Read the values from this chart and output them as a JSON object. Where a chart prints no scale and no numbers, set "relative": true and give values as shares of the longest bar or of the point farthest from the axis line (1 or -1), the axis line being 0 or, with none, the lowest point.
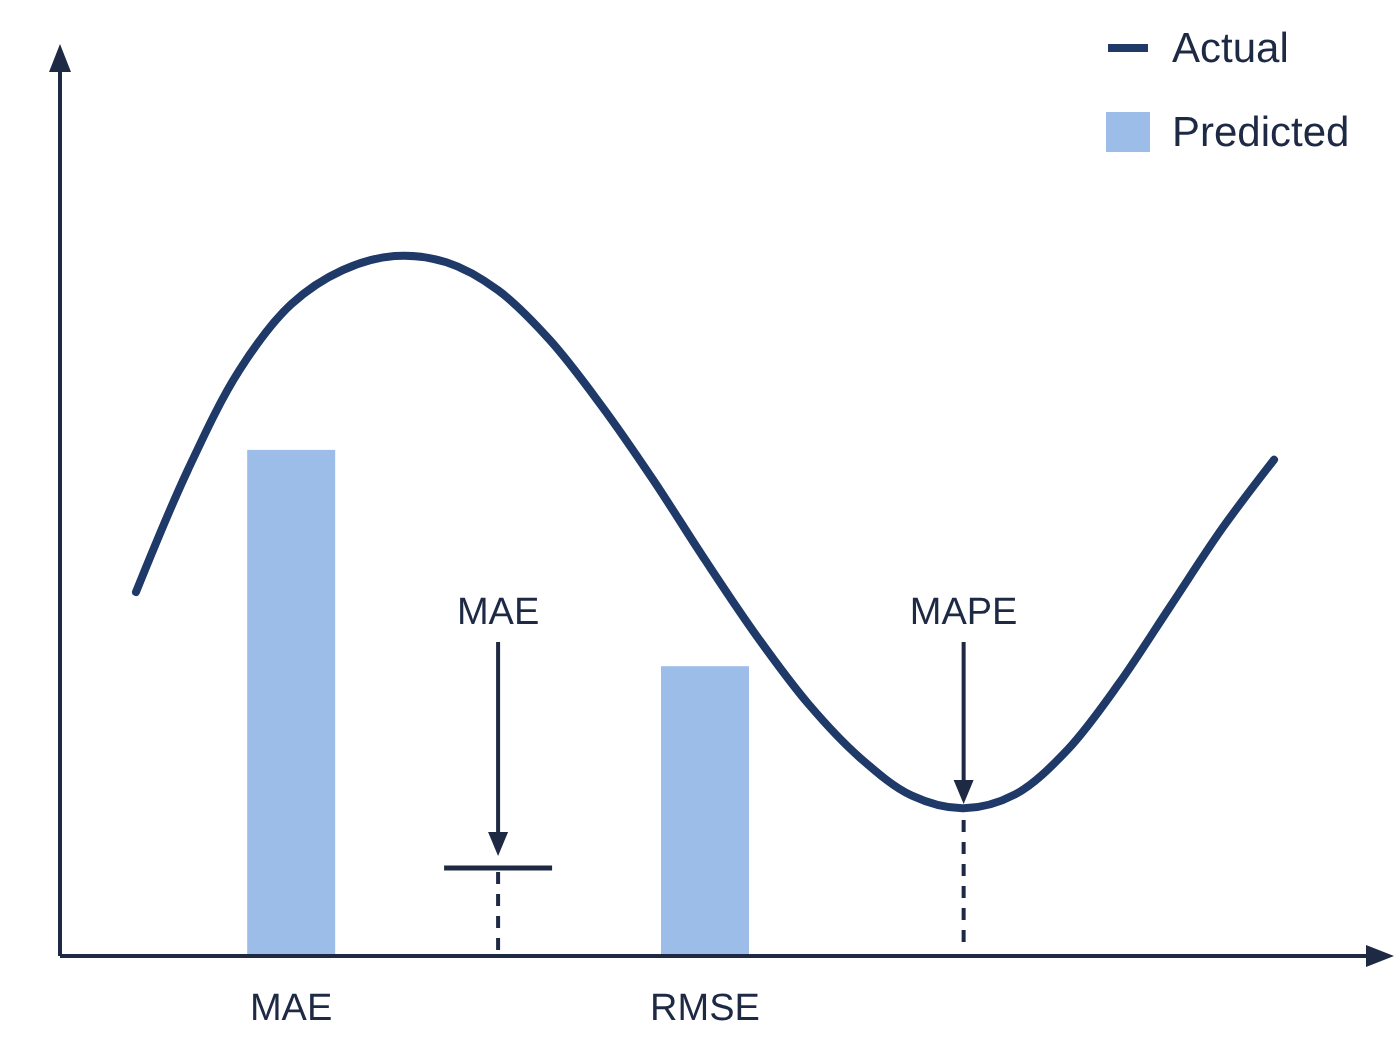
{
  "chart_data": {
    "type": "bar",
    "relative": true,
    "legend": "top right",
    "categories": [
      null,
      null,
      null,
      "MAE",
      null,
      null,
      null,
      null,
      null,
      null,
      null,
      "RMSE",
      null,
      null,
      null,
      null,
      null,
      null,
      null,
      null,
      null,
      null,
      null
    ],
    "series": [
      {
        "name": "Actual",
        "type": "line",
        "color": "#1f3a68",
        "values": [
          0.52,
          0.694,
          0.837,
          0.931,
          0.98,
          1,
          0.991,
          0.951,
          0.88,
          0.786,
          0.68,
          0.566,
          0.457,
          0.36,
          0.283,
          0.229,
          0.211,
          0.231,
          0.294,
          0.389,
          0.5,
          0.611,
          0.709
        ]
      },
      {
        "name": "Predicted",
        "color": "#9dbde9",
        "values": [
          null,
          null,
          null,
          0.723,
          null,
          null,
          null,
          null,
          null,
          null,
          null,
          0.414,
          null,
          null,
          null,
          null,
          null,
          null,
          null,
          null,
          null,
          null,
          null
        ]
      }
    ],
    "annotations": [
      "MAE",
      "MAPE"
    ]
  }
}
